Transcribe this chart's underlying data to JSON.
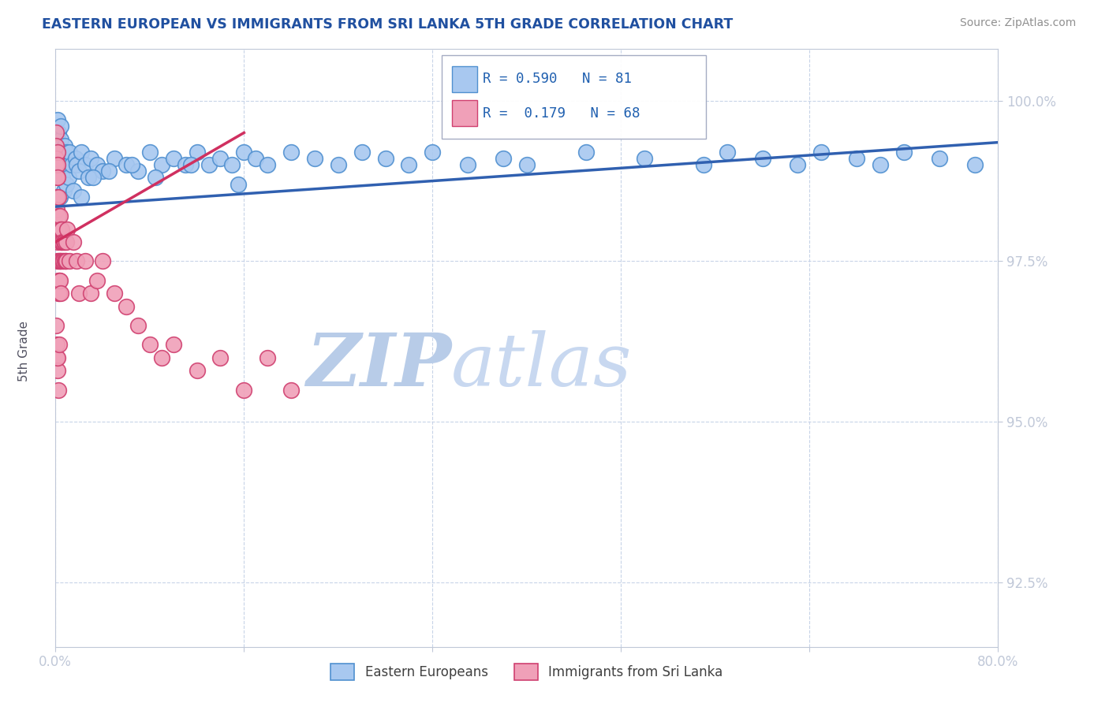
{
  "title": "EASTERN EUROPEAN VS IMMIGRANTS FROM SRI LANKA 5TH GRADE CORRELATION CHART",
  "source": "Source: ZipAtlas.com",
  "ylabel": "5th Grade",
  "yticks_right": [
    92.5,
    95.0,
    97.5,
    100.0
  ],
  "xmin": 0.0,
  "xmax": 80.0,
  "ymin": 91.5,
  "ymax": 100.8,
  "r_blue": 0.59,
  "n_blue": 81,
  "r_pink": 0.179,
  "n_pink": 68,
  "blue_fill": "#a8c8f0",
  "blue_edge": "#5090d0",
  "pink_fill": "#f0a0b8",
  "pink_edge": "#d04070",
  "blue_line_color": "#3060b0",
  "pink_line_color": "#d03060",
  "legend_blue_label": "Eastern Europeans",
  "legend_pink_label": "Immigrants from Sri Lanka",
  "background_color": "#ffffff",
  "watermark_zip": "ZIP",
  "watermark_atlas": "atlas",
  "watermark_color_zip": "#b8cce8",
  "watermark_color_atlas": "#c8d8f0",
  "grid_color": "#c8d4e8",
  "blue_trend_x0": 0.0,
  "blue_trend_y0": 98.35,
  "blue_trend_x1": 80.0,
  "blue_trend_y1": 99.35,
  "pink_trend_x0": 0.0,
  "pink_trend_y0": 97.8,
  "pink_trend_x1": 16.0,
  "pink_trend_y1": 99.5,
  "blue_dots_x": [
    0.15,
    0.18,
    0.2,
    0.22,
    0.25,
    0.28,
    0.3,
    0.35,
    0.38,
    0.4,
    0.42,
    0.45,
    0.48,
    0.5,
    0.55,
    0.6,
    0.65,
    0.7,
    0.75,
    0.8,
    0.85,
    0.9,
    0.95,
    1.0,
    1.1,
    1.2,
    1.4,
    1.5,
    1.7,
    1.8,
    2.0,
    2.2,
    2.5,
    2.8,
    3.0,
    3.5,
    4.0,
    5.0,
    6.0,
    7.0,
    8.0,
    9.0,
    10.0,
    11.0,
    12.0,
    13.0,
    14.0,
    15.0,
    16.0,
    17.0,
    18.0,
    20.0,
    22.0,
    24.0,
    26.0,
    28.0,
    30.0,
    32.0,
    35.0,
    38.0,
    40.0,
    45.0,
    50.0,
    55.0,
    57.0,
    60.0,
    63.0,
    65.0,
    68.0,
    70.0,
    72.0,
    75.0,
    78.0,
    2.2,
    3.2,
    4.5,
    6.5,
    8.5,
    11.5,
    15.5
  ],
  "blue_dots_y": [
    99.7,
    99.5,
    99.3,
    99.0,
    99.5,
    99.2,
    99.0,
    98.8,
    99.2,
    98.5,
    99.0,
    99.4,
    99.6,
    99.0,
    99.2,
    98.8,
    99.1,
    98.6,
    99.0,
    99.3,
    99.0,
    98.7,
    99.2,
    99.0,
    98.8,
    99.2,
    99.0,
    98.6,
    99.1,
    99.0,
    98.9,
    99.2,
    99.0,
    98.8,
    99.1,
    99.0,
    98.9,
    99.1,
    99.0,
    98.9,
    99.2,
    99.0,
    99.1,
    99.0,
    99.2,
    99.0,
    99.1,
    99.0,
    99.2,
    99.1,
    99.0,
    99.2,
    99.1,
    99.0,
    99.2,
    99.1,
    99.0,
    99.2,
    99.0,
    99.1,
    99.0,
    99.2,
    99.1,
    99.0,
    99.2,
    99.1,
    99.0,
    99.2,
    99.1,
    99.0,
    99.2,
    99.1,
    99.0,
    98.5,
    98.8,
    98.9,
    99.0,
    98.8,
    99.0,
    98.7
  ],
  "pink_dots_x": [
    0.03,
    0.05,
    0.07,
    0.08,
    0.1,
    0.12,
    0.13,
    0.15,
    0.15,
    0.17,
    0.18,
    0.2,
    0.2,
    0.22,
    0.22,
    0.25,
    0.25,
    0.28,
    0.3,
    0.3,
    0.32,
    0.35,
    0.35,
    0.38,
    0.4,
    0.4,
    0.42,
    0.45,
    0.45,
    0.48,
    0.5,
    0.5,
    0.55,
    0.6,
    0.65,
    0.7,
    0.75,
    0.8,
    0.85,
    0.9,
    0.95,
    1.0,
    1.2,
    1.5,
    1.8,
    2.0,
    2.5,
    3.0,
    3.5,
    4.0,
    5.0,
    6.0,
    7.0,
    8.0,
    9.0,
    10.0,
    12.0,
    14.0,
    16.0,
    18.0,
    20.0,
    0.08,
    0.1,
    0.12,
    0.15,
    0.2,
    0.25,
    0.3
  ],
  "pink_dots_y": [
    99.5,
    99.3,
    99.1,
    99.0,
    98.8,
    98.5,
    98.3,
    98.0,
    99.2,
    97.8,
    99.0,
    97.5,
    98.8,
    97.2,
    98.5,
    97.0,
    98.2,
    97.5,
    97.0,
    98.0,
    97.2,
    97.5,
    98.0,
    97.2,
    97.5,
    98.2,
    97.0,
    97.8,
    98.0,
    97.5,
    97.8,
    98.0,
    97.5,
    97.8,
    97.5,
    97.8,
    97.5,
    97.8,
    97.5,
    97.8,
    97.5,
    98.0,
    97.5,
    97.8,
    97.5,
    97.0,
    97.5,
    97.0,
    97.2,
    97.5,
    97.0,
    96.8,
    96.5,
    96.2,
    96.0,
    96.2,
    95.8,
    96.0,
    95.5,
    96.0,
    95.5,
    96.5,
    96.2,
    96.0,
    95.8,
    96.0,
    95.5,
    96.2
  ]
}
